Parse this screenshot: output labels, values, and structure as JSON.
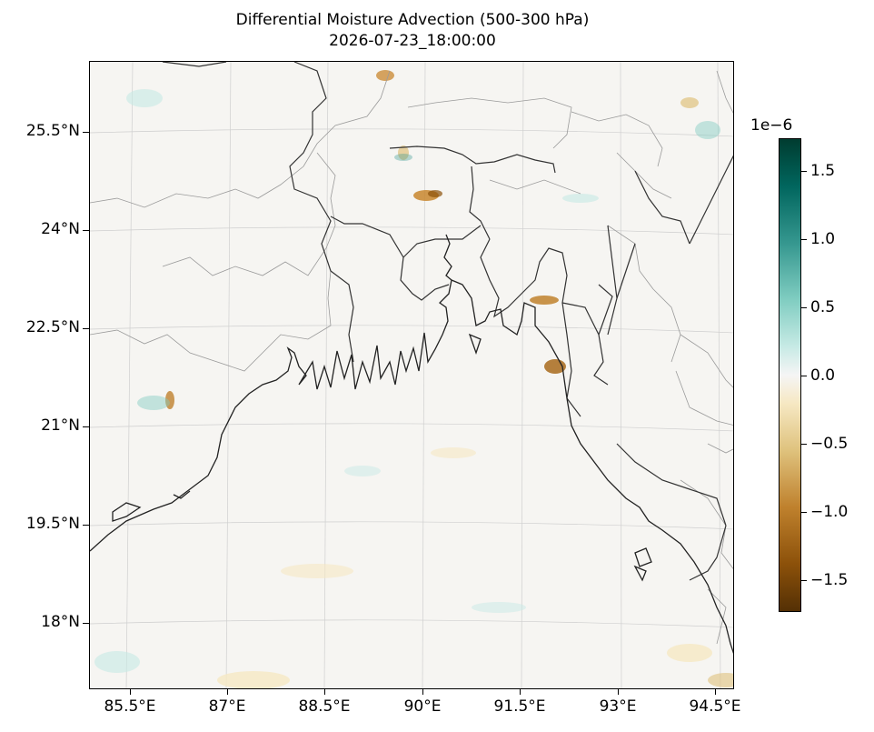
{
  "title": {
    "line1": "Differential Moisture Advection (500-300 hPa)",
    "line2": "2026-07-23_18:00:00"
  },
  "map": {
    "lon_range": [
      84.9,
      95.0
    ],
    "lat_range": [
      16.8,
      26.3
    ],
    "colormap": "BrBG",
    "features": [
      "coastline",
      "country-borders",
      "state-borders",
      "gridlines"
    ],
    "lat_labels": [
      "25.5°N",
      "24°N",
      "22.5°N",
      "21°N",
      "19.5°N",
      "18°N"
    ],
    "lon_labels": [
      "85.5°E",
      "87°E",
      "88.5°E",
      "90°E",
      "91.5°E",
      "93°E",
      "94.5°E"
    ]
  },
  "colorbar": {
    "exponent_label": "1e−6",
    "range": [
      -1.72,
      1.72
    ],
    "tick_labels": [
      "1.5",
      "1.0",
      "0.5",
      "0.0",
      "−0.5",
      "−1.0",
      "−1.5"
    ]
  }
}
